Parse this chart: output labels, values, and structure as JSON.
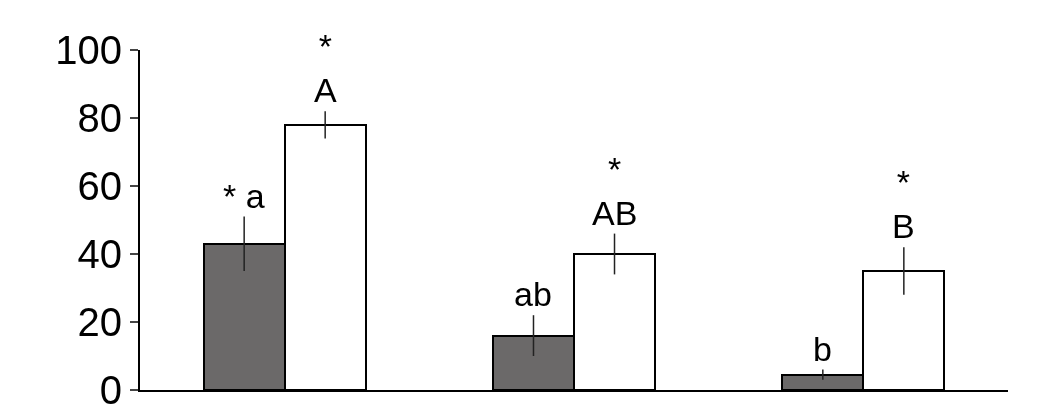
{
  "chart_data": {
    "type": "bar",
    "categories": [
      null,
      null,
      null
    ],
    "series": [
      {
        "color": "#6b6969",
        "values": [
          43,
          16,
          4.5
        ],
        "errors": [
          8,
          6,
          1.5
        ]
      },
      {
        "color": "#ffffff",
        "values": [
          78,
          40,
          35
        ],
        "errors": [
          4,
          6,
          7
        ]
      }
    ],
    "annotations": [
      "* a",
      "*\nA",
      "ab",
      "*\nAB",
      "b",
      "*\nB"
    ],
    "ylim": [
      0,
      100
    ],
    "yticks": [
      0,
      20,
      40,
      60,
      80,
      100
    ]
  }
}
